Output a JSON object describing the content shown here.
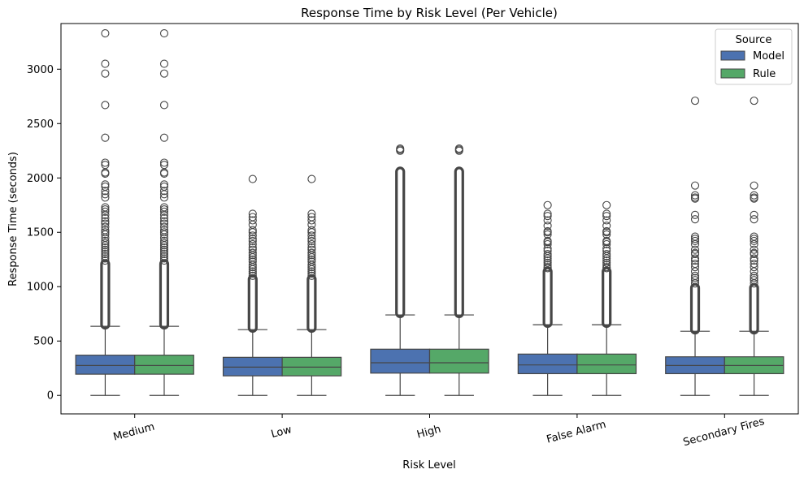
{
  "chart_data": {
    "type": "box",
    "title": "Response Time by Risk Level (Per Vehicle)",
    "xlabel": "Risk Level",
    "ylabel": "Response Time (seconds)",
    "categories": [
      "Medium",
      "Low",
      "High",
      "False Alarm",
      "Secondary Fires"
    ],
    "ylim": [
      -170,
      3420
    ],
    "yticks": [
      0,
      500,
      1000,
      1500,
      2000,
      2500,
      3000
    ],
    "grid": false,
    "legend": {
      "title": "Source",
      "placement": "top-right"
    },
    "series": [
      {
        "name": "Model",
        "color": "#4c72b0",
        "boxes": [
          {
            "whislo": 0,
            "q1": 195,
            "med": 275,
            "q3": 370,
            "whishi": 635,
            "outlier_range": [
              640,
              1220
            ],
            "outliers": [
              3330,
              3050,
              2960,
              2670,
              2370,
              2140,
              2120,
              2050,
              2040,
              1940,
              1920,
              1880,
              1850,
              1820,
              1730,
              1710,
              1690,
              1660,
              1630,
              1600,
              1580,
              1550,
              1520,
              1500,
              1480,
              1450,
              1420,
              1400,
              1380,
              1360,
              1340,
              1320,
              1300,
              1280,
              1260,
              1240
            ]
          },
          {
            "whislo": 0,
            "q1": 180,
            "med": 260,
            "q3": 350,
            "whishi": 605,
            "outlier_range": [
              610,
              1080
            ],
            "outliers": [
              1990,
              1670,
              1640,
              1610,
              1570,
              1520,
              1500,
              1470,
              1440,
              1420,
              1390,
              1360,
              1340,
              1310,
              1290,
              1270,
              1250,
              1230,
              1200,
              1180,
              1160,
              1140,
              1120,
              1100
            ]
          },
          {
            "whislo": 0,
            "q1": 205,
            "med": 300,
            "q3": 425,
            "whishi": 740,
            "outlier_range": [
              745,
              2070
            ],
            "outliers": [
              2270,
              2260,
              2250
            ]
          },
          {
            "whislo": 0,
            "q1": 200,
            "med": 280,
            "q3": 380,
            "whishi": 650,
            "outlier_range": [
              655,
              1150
            ],
            "outliers": [
              1750,
              1670,
              1650,
              1610,
              1560,
              1510,
              1500,
              1480,
              1420,
              1410,
              1390,
              1350,
              1330,
              1300,
              1280,
              1260,
              1240,
              1220,
              1200,
              1180,
              1170
            ]
          },
          {
            "whislo": 0,
            "q1": 200,
            "med": 275,
            "q3": 355,
            "whishi": 590,
            "outlier_range": [
              595,
              1000
            ],
            "outliers": [
              2710,
              1930,
              1840,
              1820,
              1810,
              1660,
              1620,
              1460,
              1440,
              1420,
              1390,
              1340,
              1310,
              1300,
              1260,
              1240,
              1210,
              1180,
              1140,
              1100,
              1080,
              1060,
              1030
            ]
          }
        ]
      },
      {
        "name": "Rule",
        "color": "#55a868",
        "boxes": [
          {
            "whislo": 0,
            "q1": 195,
            "med": 275,
            "q3": 370,
            "whishi": 635,
            "outlier_range": [
              640,
              1220
            ],
            "outliers": [
              3330,
              3050,
              2960,
              2670,
              2370,
              2140,
              2120,
              2050,
              2040,
              1940,
              1920,
              1880,
              1850,
              1820,
              1730,
              1710,
              1690,
              1660,
              1630,
              1600,
              1580,
              1550,
              1520,
              1500,
              1480,
              1450,
              1420,
              1400,
              1380,
              1360,
              1340,
              1320,
              1300,
              1280,
              1260,
              1240
            ]
          },
          {
            "whislo": 0,
            "q1": 180,
            "med": 260,
            "q3": 350,
            "whishi": 605,
            "outlier_range": [
              610,
              1080
            ],
            "outliers": [
              1990,
              1670,
              1640,
              1610,
              1570,
              1520,
              1500,
              1470,
              1440,
              1420,
              1390,
              1360,
              1340,
              1310,
              1290,
              1270,
              1250,
              1230,
              1200,
              1180,
              1160,
              1140,
              1120,
              1100
            ]
          },
          {
            "whislo": 0,
            "q1": 205,
            "med": 300,
            "q3": 425,
            "whishi": 740,
            "outlier_range": [
              745,
              2070
            ],
            "outliers": [
              2270,
              2260,
              2250
            ]
          },
          {
            "whislo": 0,
            "q1": 200,
            "med": 280,
            "q3": 380,
            "whishi": 650,
            "outlier_range": [
              655,
              1150
            ],
            "outliers": [
              1750,
              1670,
              1650,
              1610,
              1560,
              1510,
              1500,
              1480,
              1420,
              1410,
              1390,
              1350,
              1330,
              1300,
              1280,
              1260,
              1240,
              1220,
              1200,
              1180,
              1170
            ]
          },
          {
            "whislo": 0,
            "q1": 200,
            "med": 275,
            "q3": 355,
            "whishi": 590,
            "outlier_range": [
              595,
              1000
            ],
            "outliers": [
              2710,
              1930,
              1840,
              1820,
              1810,
              1660,
              1620,
              1460,
              1440,
              1420,
              1390,
              1340,
              1310,
              1300,
              1260,
              1240,
              1210,
              1180,
              1140,
              1100,
              1080,
              1060,
              1030
            ]
          }
        ]
      }
    ]
  }
}
